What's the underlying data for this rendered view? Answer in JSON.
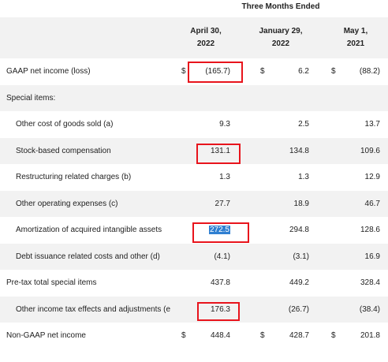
{
  "header": {
    "title": "Three Months Ended"
  },
  "columns": [
    {
      "line1": "April 30,",
      "line2": "2022"
    },
    {
      "line1": "January 29,",
      "line2": "2022"
    },
    {
      "line1": "May 1,",
      "line2": "2021"
    }
  ],
  "rows": {
    "gaap": {
      "label": "GAAP net income (loss)",
      "currency": "$",
      "v1": "(165.7)",
      "v2": "6.2",
      "v3": "(88.2)"
    },
    "special_items": {
      "label": "Special items:"
    },
    "other_cogs": {
      "label": "Other cost of goods sold (a)",
      "v1": "9.3",
      "v2": "2.5",
      "v3": "13.7"
    },
    "sbc": {
      "label": "Stock-based compensation",
      "v1": "131.1",
      "v2": "134.8",
      "v3": "109.6"
    },
    "restructuring": {
      "label": "Restructuring related charges (b)",
      "v1": "1.3",
      "v2": "1.3",
      "v3": "12.9"
    },
    "other_opex": {
      "label": "Other operating expenses (c)",
      "v1": "27.7",
      "v2": "18.9",
      "v3": "46.7"
    },
    "amortization": {
      "label": "Amortization of acquired intangible assets",
      "v1": "272.5",
      "v2": "294.8",
      "v3": "128.6"
    },
    "debt": {
      "label": "Debt issuance related costs and other (d)",
      "v1": "(4.1)",
      "v2": "(3.1)",
      "v3": "16.9"
    },
    "pretax": {
      "label": "Pre-tax total special items",
      "v1": "437.8",
      "v2": "449.2",
      "v3": "328.4"
    },
    "tax_effects": {
      "label": "Other income tax effects and adjustments (e",
      "v1": "176.3",
      "v2": "(26.7)",
      "v3": "(38.4)"
    },
    "nongaap": {
      "label": "Non-GAAP net income",
      "currency": "$",
      "v1": "448.4",
      "v2": "428.7",
      "v3": "201.8"
    }
  },
  "colors": {
    "highlight_border": "#e8141c",
    "selection_bg": "#2f7fd1",
    "shaded_row": "#f2f2f2"
  }
}
